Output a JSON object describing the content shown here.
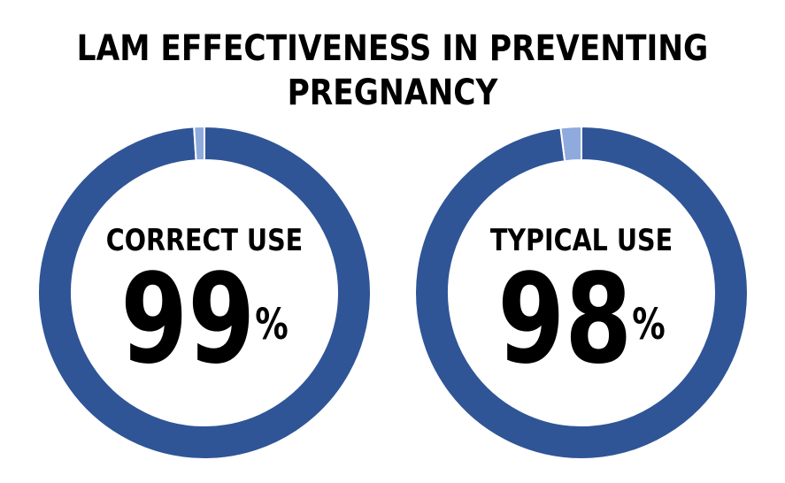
{
  "title_lines": [
    "LAM EFFECTIVENESS IN PREVENTING",
    "PREGNANCY"
  ],
  "chart_data": [
    {
      "type": "pie",
      "label": "CORRECT USE",
      "value": 99,
      "unit": "%",
      "slices": [
        {
          "value": 99,
          "color": "#2F5597"
        },
        {
          "value": 1,
          "color": "#8FAADC"
        }
      ]
    },
    {
      "type": "pie",
      "label": "TYPICAL USE",
      "value": 98,
      "unit": "%",
      "slices": [
        {
          "value": 98,
          "color": "#2F5597"
        },
        {
          "value": 2,
          "color": "#8FAADC"
        }
      ]
    }
  ]
}
